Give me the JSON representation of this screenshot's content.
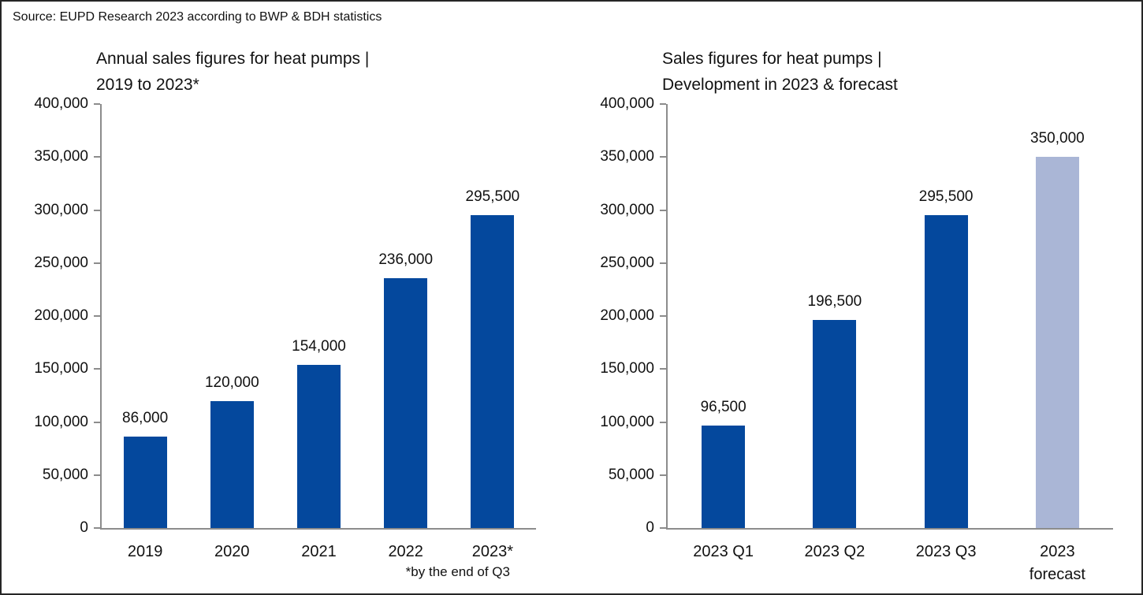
{
  "source_line": "Source: EUPD Research 2023 according to BWP & BDH statistics",
  "colors": {
    "bar_primary": "#04489d",
    "bar_forecast": "#aab6d6",
    "axis": "#8c8c8c",
    "text": "#111111",
    "border": "#262626"
  },
  "chart_data": [
    {
      "type": "bar",
      "title": "Annual sales figures for heat pumps |\n2019 to 2023*",
      "categories": [
        "2019",
        "2020",
        "2021",
        "2022",
        "2023*"
      ],
      "values": [
        86000,
        120000,
        154000,
        236000,
        295500
      ],
      "value_labels": [
        "86,000",
        "120,000",
        "154,000",
        "236,000",
        "295,500"
      ],
      "bar_colors": [
        "#04489d",
        "#04489d",
        "#04489d",
        "#04489d",
        "#04489d"
      ],
      "ylim": [
        0,
        400000
      ],
      "ytick_step": 50000,
      "ytick_labels": [
        "0",
        "50,000",
        "100,000",
        "150,000",
        "200,000",
        "250,000",
        "300,000",
        "350,000",
        "400,000"
      ],
      "grid": false,
      "legend": null,
      "footnote": "*by the end of Q3"
    },
    {
      "type": "bar",
      "title": "Sales figures for heat pumps |\nDevelopment in 2023 & forecast",
      "categories": [
        "2023 Q1",
        "2023 Q2",
        "2023 Q3",
        "2023\nforecast"
      ],
      "values": [
        96500,
        196500,
        295500,
        350000
      ],
      "value_labels": [
        "96,500",
        "196,500",
        "295,500",
        "350,000"
      ],
      "bar_colors": [
        "#04489d",
        "#04489d",
        "#04489d",
        "#aab6d6"
      ],
      "ylim": [
        0,
        400000
      ],
      "ytick_step": 50000,
      "ytick_labels": [
        "0",
        "50,000",
        "100,000",
        "150,000",
        "200,000",
        "250,000",
        "300,000",
        "350,000",
        "400,000"
      ],
      "grid": false,
      "legend": null
    }
  ]
}
